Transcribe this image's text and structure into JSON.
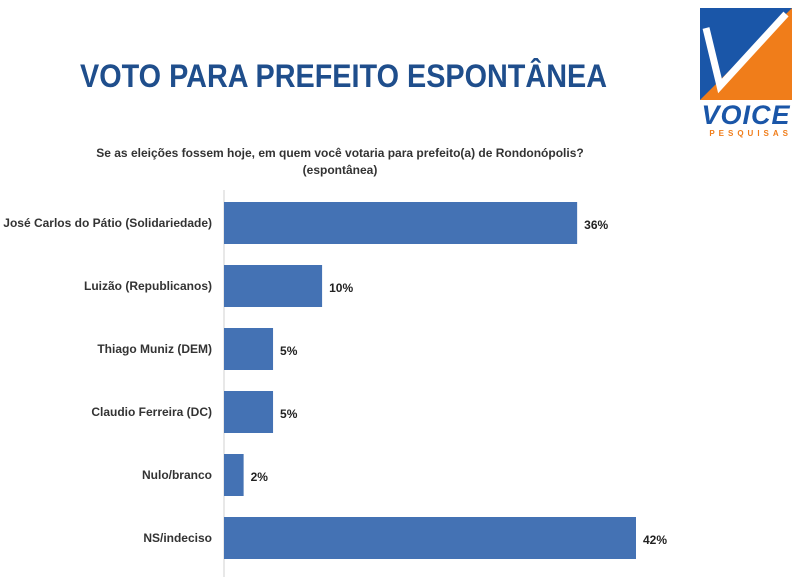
{
  "title": "VOTO PARA PREFEITO ESPONTÂNEA",
  "logo": {
    "word": "VOICE",
    "sub": "PESQUISAS"
  },
  "colors": {
    "title": "#1f4e8c",
    "bar": "#4472b4",
    "logo_blue": "#1a56a8",
    "logo_orange": "#f07d1a"
  },
  "chart_data": {
    "type": "bar",
    "orientation": "horizontal",
    "title": "Se as eleições fossem hoje, em quem você votaria para prefeito(a) de Rondonópolis? (espontânea)",
    "title_lines": [
      "Se as eleições fossem hoje, em quem você votaria para prefeito(a) de Rondonópolis?",
      "(espontânea)"
    ],
    "categories": [
      "José Carlos do Pátio (Solidariedade)",
      "Luizão (Republicanos)",
      "Thiago Muniz (DEM)",
      "Claudio Ferreira (DC)",
      "Nulo/branco",
      "NS/indeciso"
    ],
    "values": [
      36,
      10,
      5,
      5,
      2,
      42
    ],
    "value_labels": [
      "36%",
      "10%",
      "5%",
      "5%",
      "2%",
      "42%"
    ],
    "unit": "%",
    "xlim": [
      0,
      42
    ],
    "grid": false,
    "legend": "none"
  }
}
